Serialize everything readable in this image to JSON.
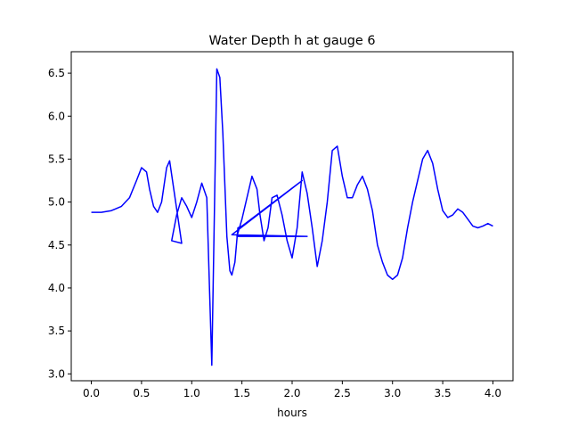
{
  "chart_data": {
    "type": "line",
    "title": "Water Depth h at gauge 6",
    "xlabel": "hours",
    "ylabel": "",
    "xlim": [
      -0.2,
      4.2
    ],
    "ylim": [
      2.92,
      6.75
    ],
    "x_ticks": [
      0.0,
      0.5,
      1.0,
      1.5,
      2.0,
      2.5,
      3.0,
      3.5,
      4.0
    ],
    "x_tick_labels": [
      "0.0",
      "0.5",
      "1.0",
      "1.5",
      "2.0",
      "2.5",
      "3.0",
      "3.5",
      "4.0"
    ],
    "y_ticks": [
      3.0,
      3.5,
      4.0,
      4.5,
      5.0,
      5.5,
      6.0,
      6.5
    ],
    "y_tick_labels": [
      "3.0",
      "3.5",
      "4.0",
      "4.5",
      "5.0",
      "5.5",
      "6.0",
      "6.5"
    ],
    "grid": false,
    "series": [
      {
        "color": "#0000ff",
        "x": [
          0.0,
          0.1,
          0.2,
          0.3,
          0.38,
          0.45,
          0.5,
          0.55,
          0.58,
          0.62,
          0.66,
          0.7,
          0.75,
          0.78,
          0.9,
          0.8,
          0.85,
          0.9,
          0.95,
          1.0,
          1.05,
          1.1,
          1.15,
          1.2,
          1.25,
          1.28,
          1.31,
          1.35,
          1.38,
          1.4,
          1.43,
          1.46,
          1.5,
          2.1,
          1.4,
          2.15,
          1.45,
          1.5,
          1.55,
          1.6,
          1.65,
          1.68,
          1.72,
          1.76,
          1.8,
          1.85,
          1.9,
          1.95,
          2.0,
          2.05,
          2.1,
          2.15,
          2.2,
          2.25,
          2.3,
          2.35,
          2.4,
          2.45,
          2.5,
          2.55,
          2.6,
          2.65,
          2.7,
          2.75,
          2.8,
          2.85,
          2.9,
          2.95,
          3.0,
          3.05,
          3.1,
          3.15,
          3.2,
          3.25,
          3.3,
          3.35,
          3.4,
          3.45,
          3.5,
          3.55,
          3.6,
          3.65,
          3.7,
          3.75,
          3.8,
          3.85,
          3.9,
          3.95,
          4.0
        ],
        "y": [
          4.88,
          4.88,
          4.9,
          4.95,
          5.05,
          5.25,
          5.4,
          5.35,
          5.15,
          4.95,
          4.88,
          5.0,
          5.4,
          5.48,
          4.52,
          4.55,
          4.85,
          5.05,
          4.95,
          4.82,
          5.0,
          5.22,
          5.05,
          3.1,
          6.55,
          6.45,
          5.8,
          4.6,
          4.2,
          4.15,
          4.3,
          4.7,
          4.72,
          5.25,
          4.62,
          4.6,
          4.6,
          4.8,
          5.05,
          5.3,
          5.15,
          4.85,
          4.55,
          4.7,
          5.05,
          5.08,
          4.85,
          4.55,
          4.35,
          4.7,
          5.35,
          5.1,
          4.7,
          4.25,
          4.55,
          5.0,
          5.6,
          5.65,
          5.3,
          5.05,
          5.05,
          5.2,
          5.3,
          5.15,
          4.9,
          4.5,
          4.3,
          4.15,
          4.1,
          4.15,
          4.35,
          4.7,
          5.0,
          5.25,
          5.5,
          5.6,
          5.45,
          5.15,
          4.9,
          4.82,
          4.85,
          4.92,
          4.88,
          4.8,
          4.72,
          4.7,
          4.72,
          4.75,
          4.72
        ]
      }
    ]
  }
}
